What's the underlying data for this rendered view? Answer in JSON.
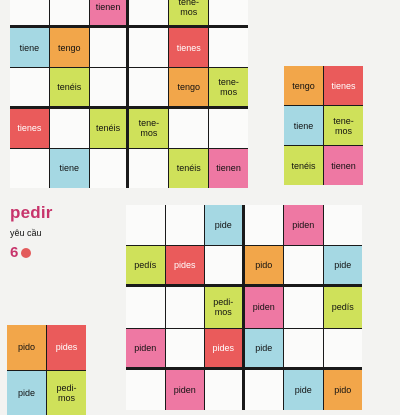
{
  "colors": {
    "blue": "#a5d8e3",
    "orange": "#f2a64a",
    "pink": "#ee78a3",
    "red": "#ea5b5b",
    "green": "#cfe15a",
    "white": "#fbfbfa"
  },
  "top_grid": {
    "rows": [
      [
        "",
        "",
        "tienen",
        "",
        "tene-\nmos",
        ""
      ],
      [
        "tiene",
        "tengo",
        "",
        "",
        "tienes",
        ""
      ],
      [
        "",
        "tenéis",
        "",
        "",
        "tengo",
        "tene-\nmos"
      ],
      [
        "tienes",
        "",
        "tenéis",
        "tene-\nmos",
        "",
        ""
      ],
      [
        "",
        "tiene",
        "",
        "",
        "tenéis",
        "tienen"
      ]
    ],
    "colors": [
      [
        "",
        "",
        "pink",
        "",
        "green",
        ""
      ],
      [
        "blue",
        "orange",
        "",
        "",
        "red",
        ""
      ],
      [
        "",
        "green",
        "",
        "",
        "orange",
        "green"
      ],
      [
        "red",
        "",
        "green",
        "green",
        "",
        ""
      ],
      [
        "",
        "blue",
        "",
        "",
        "green",
        "pink"
      ]
    ]
  },
  "key_grid_top": {
    "rows": [
      [
        "tengo",
        "tienes"
      ],
      [
        "tiene",
        "tene-\nmos"
      ],
      [
        "tenéis",
        "tienen"
      ]
    ],
    "colors": [
      [
        "orange",
        "red"
      ],
      [
        "blue",
        "green"
      ],
      [
        "green",
        "pink"
      ]
    ]
  },
  "section": {
    "title": "pedir",
    "subtitle": "yêu cầu",
    "number": "6"
  },
  "bottom_grid": {
    "rows": [
      [
        "",
        "",
        "pide",
        "",
        "piden",
        ""
      ],
      [
        "pedís",
        "pides",
        "",
        "pido",
        "",
        "pide"
      ],
      [
        "",
        "",
        "pedi-\nmos",
        "piden",
        "",
        "pedís"
      ],
      [
        "piden",
        "",
        "pides",
        "pide",
        "",
        ""
      ],
      [
        "",
        "piden",
        "",
        "",
        "pide",
        "pido"
      ]
    ],
    "colors": [
      [
        "",
        "",
        "blue",
        "",
        "pink",
        ""
      ],
      [
        "green",
        "red",
        "",
        "orange",
        "",
        "blue"
      ],
      [
        "",
        "",
        "green",
        "pink",
        "",
        "green"
      ],
      [
        "pink",
        "",
        "red",
        "blue",
        "",
        ""
      ],
      [
        "",
        "pink",
        "",
        "",
        "blue",
        "orange"
      ]
    ]
  },
  "key_grid_bottom": {
    "rows": [
      [
        "pido",
        "pides"
      ],
      [
        "pide",
        "pedi-\nmos"
      ]
    ],
    "colors": [
      [
        "orange",
        "red"
      ],
      [
        "blue",
        "green"
      ]
    ]
  }
}
